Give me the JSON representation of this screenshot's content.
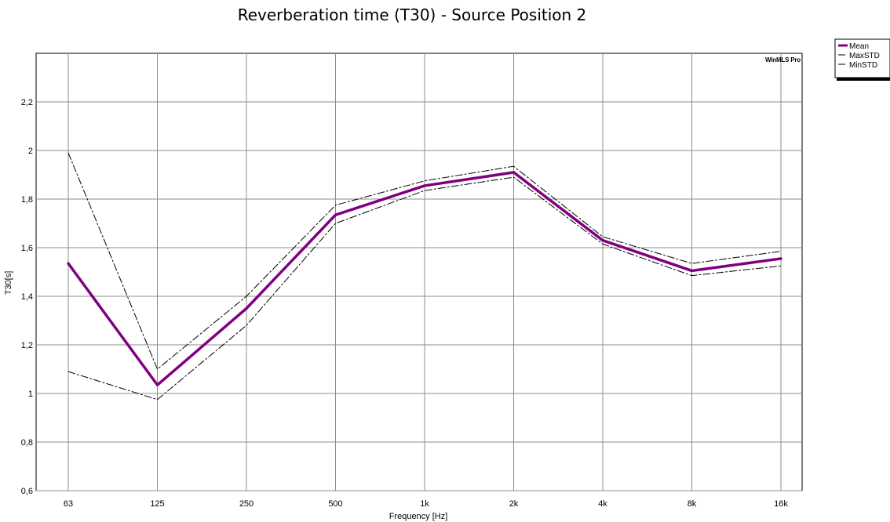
{
  "chart_data": {
    "type": "line",
    "title": "Reverberation time (T30) - Source Position 2",
    "xlabel": "Frequency [Hz]",
    "ylabel": "T30[s]",
    "watermark": "WinMLS Pro",
    "categories": [
      "63",
      "125",
      "250",
      "500",
      "1k",
      "2k",
      "4k",
      "8k",
      "16k"
    ],
    "ylim": [
      0.6,
      2.4
    ],
    "y_ticks": [
      0.6,
      0.8,
      1.0,
      1.2,
      1.4,
      1.6,
      1.8,
      2.0,
      2.2
    ],
    "y_tick_labels": [
      "0,6",
      "0,8",
      "1",
      "1,2",
      "1,4",
      "1,6",
      "1,8",
      "2",
      "2,2"
    ],
    "grid": true,
    "legend_position": "outside top-right",
    "series": [
      {
        "name": "Mean",
        "color": "#800080",
        "style": "solid-thick",
        "values": [
          1.535,
          1.035,
          1.35,
          1.735,
          1.855,
          1.91,
          1.63,
          1.505,
          1.555
        ]
      },
      {
        "name": "MaxSTD",
        "color": "#000000",
        "style": "dash-dot",
        "values": [
          1.99,
          1.1,
          1.4,
          1.775,
          1.875,
          1.935,
          1.645,
          1.535,
          1.585
        ]
      },
      {
        "name": "MinSTD",
        "color": "#000000",
        "style": "dash-dot",
        "values": [
          1.09,
          0.975,
          1.28,
          1.7,
          1.835,
          1.89,
          1.615,
          1.485,
          1.525
        ]
      }
    ]
  }
}
